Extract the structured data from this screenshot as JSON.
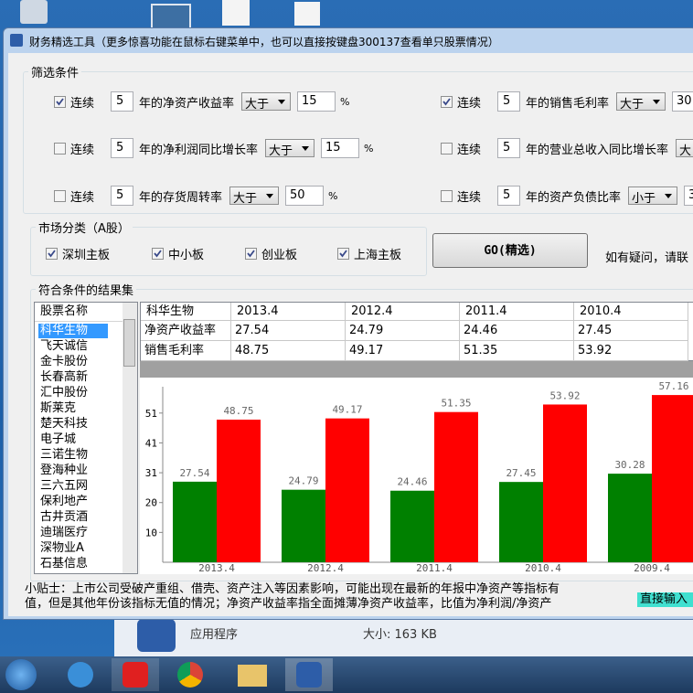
{
  "window": {
    "title": "财务精选工具（更多惊喜功能在鼠标右键菜单中，也可以直接按键盘300137查看单只股票情况）"
  },
  "filter": {
    "title": "筛选条件",
    "conditions": [
      {
        "checked": true,
        "prefix": "连续",
        "years": "5",
        "label": "年的净资产收益率",
        "operator": "大于",
        "value": "15",
        "unit": "%"
      },
      {
        "checked": false,
        "prefix": "连续",
        "years": "5",
        "label": "年的净利润同比增长率",
        "operator": "大于",
        "value": "15",
        "unit": "%"
      },
      {
        "checked": false,
        "prefix": "连续",
        "years": "5",
        "label": "年的存货周转率",
        "operator": "大于",
        "value": "50",
        "unit": "%"
      },
      {
        "checked": true,
        "prefix": "连续",
        "years": "5",
        "label": "年的销售毛利率",
        "operator": "大于",
        "value": "30"
      },
      {
        "checked": false,
        "prefix": "连续",
        "years": "5",
        "label": "年的营业总收入同比增长率",
        "operator": "大"
      },
      {
        "checked": false,
        "prefix": "连续",
        "years": "5",
        "label": "年的资产负债比率",
        "operator": "小于",
        "value": "3"
      }
    ]
  },
  "market": {
    "title": "市场分类（A股）",
    "options": [
      {
        "label": "深圳主板",
        "checked": true
      },
      {
        "label": "中小板",
        "checked": true
      },
      {
        "label": "创业板",
        "checked": true
      },
      {
        "label": "上海主板",
        "checked": true
      }
    ],
    "button": "GO(精选)",
    "help": "如有疑问，请联"
  },
  "results": {
    "title": "符合条件的结果集",
    "list_header": "股票名称",
    "stocks": [
      "科华生物",
      "飞天诚信",
      "金卡股份",
      "长春高新",
      "汇中股份",
      "斯莱克",
      "楚天科技",
      "电子城",
      "三诺生物",
      "登海种业",
      "三六五网",
      "保利地产",
      "古井贡酒",
      "迪瑞医疗",
      "深物业A",
      "石基信息"
    ],
    "selected": 0,
    "table": {
      "header": [
        "科华生物",
        "2013.4",
        "2012.4",
        "2011.4",
        "2010.4"
      ],
      "rows": [
        [
          "净资产收益率",
          "27.54",
          "24.79",
          "24.46",
          "27.45"
        ],
        [
          "销售毛利率",
          "48.75",
          "49.17",
          "51.35",
          "53.92"
        ]
      ]
    }
  },
  "chart_data": {
    "type": "bar",
    "categories": [
      "2013.4",
      "2012.4",
      "2011.4",
      "2010.4",
      "2009.4"
    ],
    "series": [
      {
        "color": "#008000",
        "values": [
          27.54,
          24.79,
          24.46,
          27.45,
          30.28
        ]
      },
      {
        "color": "#ff0000",
        "values": [
          48.75,
          49.17,
          51.35,
          53.92,
          57.16
        ]
      }
    ],
    "ylim": [
      0,
      60
    ],
    "yticks": [
      {
        "value": 10.2,
        "label": "10"
      },
      {
        "value": 20.4,
        "label": "20"
      },
      {
        "value": 30.6,
        "label": "31"
      },
      {
        "value": 40.8,
        "label": "41"
      },
      {
        "value": 51,
        "label": "51"
      }
    ]
  },
  "tip": {
    "lines": [
      "小贴士：上市公司受破产重组、借壳、资产注入等因素影响，可能出现在最新的年报中净资产等指标有",
      "值，但是其他年份该指标无值的情况；净资产收益率指全面摊薄净资产收益率，比值为净利润/净资产"
    ],
    "input": "直接输入"
  },
  "background": {
    "kind": "应用程序",
    "size": "大小: 163 KB"
  }
}
